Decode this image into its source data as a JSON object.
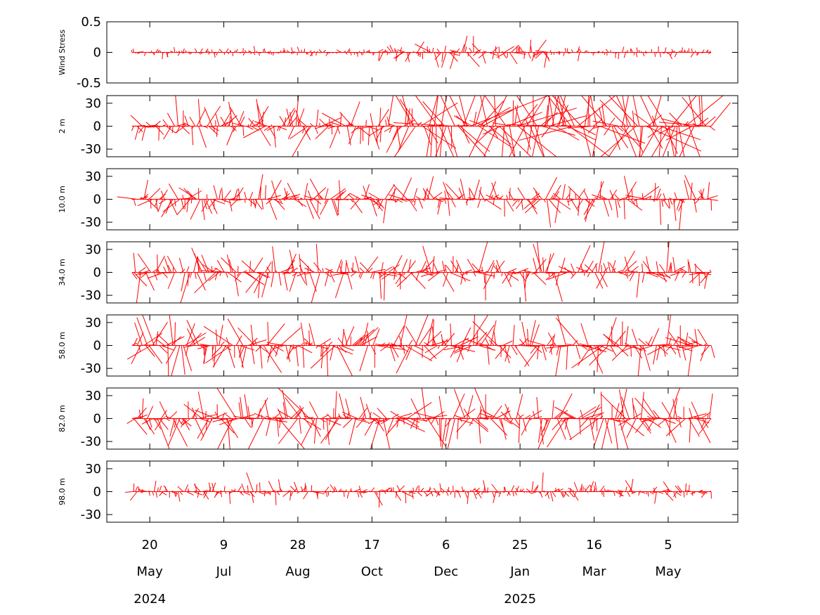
{
  "chart_data": {
    "type": "line",
    "subtype": "stick-vector-plot",
    "series_color": "#ff0000",
    "x_ticks": [
      {
        "day": "20",
        "month": "May",
        "year": "2024"
      },
      {
        "day": "9",
        "month": "Jul",
        "year": ""
      },
      {
        "day": "28",
        "month": "Aug",
        "year": ""
      },
      {
        "day": "17",
        "month": "Oct",
        "year": ""
      },
      {
        "day": "6",
        "month": "Dec",
        "year": ""
      },
      {
        "day": "25",
        "month": "Jan",
        "year": "2025"
      },
      {
        "day": "16",
        "month": "Mar",
        "year": ""
      },
      {
        "day": "5",
        "month": "May",
        "year": ""
      }
    ],
    "x_tick_dates": [
      "2024-05-20",
      "2024-07-09",
      "2024-08-28",
      "2024-10-17",
      "2024-12-06",
      "2025-01-25",
      "2025-03-16",
      "2025-05-05"
    ],
    "x_range": [
      "2024-04-21",
      "2025-06-21"
    ],
    "data_range": [
      "2024-05-08",
      "2025-06-03"
    ],
    "panels": [
      {
        "ylabel": "Wind Stress",
        "ylim": [
          -0.5,
          0.5
        ],
        "yticks": [
          "0.5",
          "0",
          "-0.5"
        ],
        "yvals": [
          0.5,
          0,
          -0.5
        ],
        "typical_amplitude": 0.06,
        "variability": "low in summer, higher Nov–Feb"
      },
      {
        "ylabel": "2 m",
        "ylim": [
          -40,
          40
        ],
        "yticks": [
          "30",
          "0",
          "-30"
        ],
        "yvals": [
          30,
          0,
          -30
        ],
        "typical_amplitude": 30,
        "variability": "strong, very large after Nov"
      },
      {
        "ylabel": "10.0 m",
        "ylim": [
          -40,
          40
        ],
        "yticks": [
          "30",
          "0",
          "-30"
        ],
        "yvals": [
          30,
          0,
          -30
        ],
        "typical_amplitude": 20,
        "variability": "moderate"
      },
      {
        "ylabel": "34.0 m",
        "ylim": [
          -40,
          40
        ],
        "yticks": [
          "30",
          "0",
          "-30"
        ],
        "yvals": [
          30,
          0,
          -30
        ],
        "typical_amplitude": 22,
        "variability": "moderate"
      },
      {
        "ylabel": "58.0 m",
        "ylim": [
          -40,
          40
        ],
        "yticks": [
          "30",
          "0",
          "-30"
        ],
        "yvals": [
          30,
          0,
          -30
        ],
        "typical_amplitude": 28,
        "variability": "strong"
      },
      {
        "ylabel": "82.0 m",
        "ylim": [
          -40,
          40
        ],
        "yticks": [
          "30",
          "0",
          "-30"
        ],
        "yvals": [
          30,
          0,
          -30
        ],
        "typical_amplitude": 30,
        "variability": "strong"
      },
      {
        "ylabel": "98.0 m",
        "ylim": [
          -40,
          40
        ],
        "yticks": [
          "30",
          "0",
          "-30"
        ],
        "yvals": [
          30,
          0,
          -30
        ],
        "typical_amplitude": 10,
        "variability": "low"
      }
    ],
    "grid": false,
    "legend": "none"
  }
}
